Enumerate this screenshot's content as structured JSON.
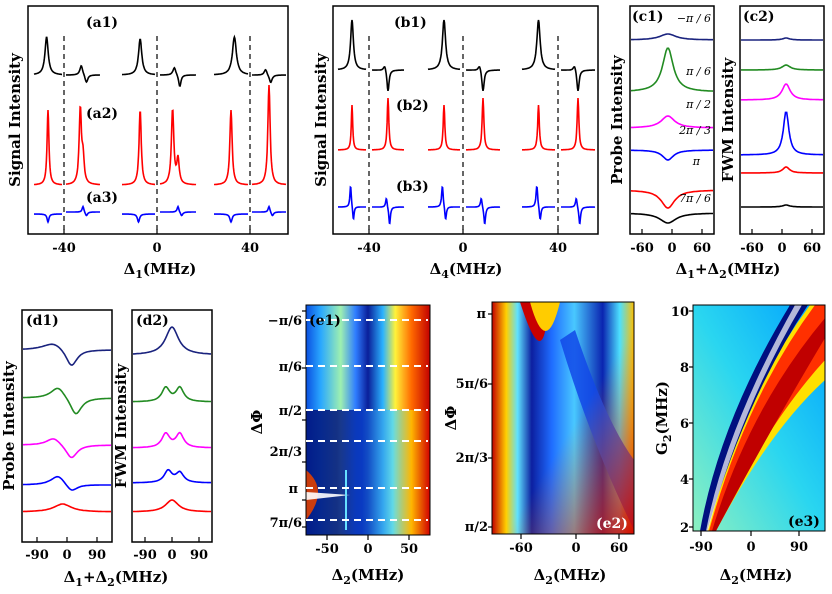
{
  "chart_data": [
    {
      "id": "a",
      "type": "line",
      "ylabel": "Signal Intensity",
      "xlabel": "Δ1(MHz)",
      "xticks": [
        "-40",
        "0",
        "40"
      ],
      "xlim": [
        -60,
        60
      ],
      "panel_labels": [
        "(a1)",
        "(a2)",
        "(a3)"
      ],
      "series": [
        {
          "name": "a1",
          "color": "#000000"
        },
        {
          "name": "a2",
          "color": "#ff0000"
        },
        {
          "name": "a3",
          "color": "#0000ff"
        }
      ]
    },
    {
      "id": "b",
      "type": "line",
      "ylabel": "Signal Intensity",
      "xlabel": "Δ4(MHz)",
      "xticks": [
        "-40",
        "0",
        "40"
      ],
      "xlim": [
        -60,
        60
      ],
      "panel_labels": [
        "(b1)",
        "(b2)",
        "(b3)"
      ],
      "series": [
        {
          "name": "b1",
          "color": "#000000"
        },
        {
          "name": "b2",
          "color": "#ff0000"
        },
        {
          "name": "b3",
          "color": "#0000ff"
        }
      ]
    },
    {
      "id": "c1",
      "type": "line",
      "ylabel": "Probe Intensity",
      "panel_label": "(c1)",
      "xticks": [
        "-60",
        "0",
        "60"
      ],
      "xlim": [
        -80,
        80
      ],
      "phase_labels": [
        "−π / 6",
        "π / 6",
        "π / 2",
        "2π / 3",
        "π",
        "7π / 6"
      ],
      "colors": [
        "#1a237e",
        "#228b22",
        "#ff00ff",
        "#0000ff",
        "#ff0000",
        "#000000"
      ]
    },
    {
      "id": "c2",
      "type": "line",
      "ylabel": "FWM Intensity",
      "panel_label": "(c2)",
      "xticks": [
        "-60",
        "0",
        "60"
      ],
      "xlim": [
        -80,
        80
      ],
      "colors": [
        "#1a237e",
        "#228b22",
        "#ff00ff",
        "#0000ff",
        "#ff0000",
        "#000000"
      ]
    },
    {
      "id": "d1",
      "type": "line",
      "ylabel": "Probe Intensity",
      "panel_label": "(d1)",
      "xticks": [
        "-90",
        "0",
        "90"
      ],
      "xlim": [
        -110,
        110
      ],
      "colors": [
        "#1a237e",
        "#228b22",
        "#ff00ff",
        "#0000ff",
        "#ff0000"
      ]
    },
    {
      "id": "d2",
      "type": "line",
      "ylabel": "FWM Intensity",
      "panel_label": "(d2)",
      "xticks": [
        "-90",
        "0",
        "90"
      ],
      "xlim": [
        -110,
        110
      ],
      "colors": [
        "#1a237e",
        "#228b22",
        "#ff00ff",
        "#0000ff",
        "#ff0000"
      ]
    },
    {
      "id": "e1",
      "type": "heatmap",
      "ylabel": "ΔΦ",
      "xlabel": "Δ2(MHz)",
      "panel_label": "(e1)",
      "xticks": [
        "-50",
        "0",
        "50"
      ],
      "xlim": [
        -75,
        75
      ],
      "yticks": [
        "−π/6",
        "π/6",
        "π/2",
        "2π/3",
        "π",
        "7π/6"
      ]
    },
    {
      "id": "e2",
      "type": "heatmap",
      "ylabel": "ΔΦ",
      "xlabel": "Δ2(MHz)",
      "panel_label": "(e2)",
      "xticks": [
        "-60",
        "0",
        "60"
      ],
      "xlim": [
        -100,
        70
      ],
      "yticks": [
        "π",
        "5π/6",
        "2π/3",
        "π/2"
      ]
    },
    {
      "id": "e3",
      "type": "heatmap",
      "ylabel": "G2(MHz)",
      "xlabel": "Δ2(MHz)",
      "panel_label": "(e3)",
      "xticks": [
        "-90",
        "0",
        "90"
      ],
      "xlim": [
        -120,
        120
      ],
      "yticks": [
        "10",
        "8",
        "6",
        "4",
        "2"
      ],
      "ylim": [
        2,
        10
      ]
    }
  ],
  "text": {
    "xlabel_a_main": "Δ",
    "xlabel_a_sub": "1",
    "xlabel_a_unit": "(MHz)",
    "xlabel_b_main": "Δ",
    "xlabel_b_sub": "4",
    "xlabel_b_unit": "(MHz)",
    "xlabel_c_1": "Δ",
    "xlabel_c_sub1": "1",
    "xlabel_c_plus": "+Δ",
    "xlabel_c_sub2": "2",
    "xlabel_c_unit": "(MHz)",
    "xlabel_d_1": "Δ",
    "xlabel_d_sub1": "1",
    "xlabel_d_plus": "+Δ",
    "xlabel_d_sub2": "2",
    "xlabel_d_unit": "(MHz)",
    "xlabel_e_main": "Δ",
    "xlabel_e_sub": "2",
    "xlabel_e_unit": "(MHz)",
    "ylabel_e3_main": "G",
    "ylabel_e3_sub": "2",
    "ylabel_e3_unit": "(MHz)",
    "ylabel_dphi": "ΔΦ",
    "ylabel_signal": "Signal Intensity",
    "ylabel_probe": "Probe Intensity",
    "ylabel_fwm": "FWM Intensity"
  }
}
